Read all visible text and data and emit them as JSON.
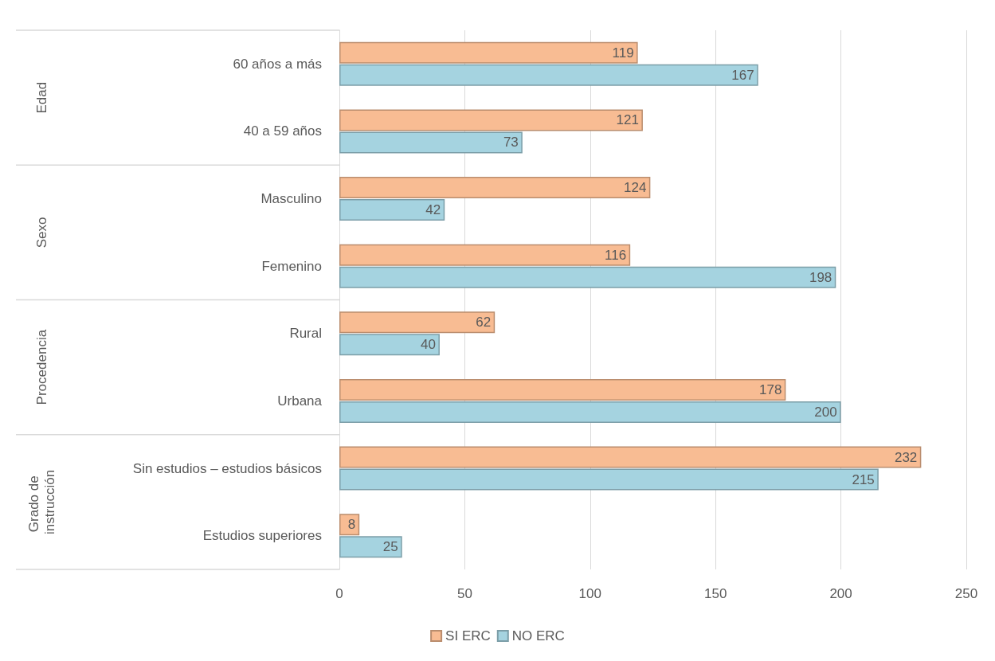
{
  "chart_data": {
    "type": "bar",
    "orientation": "horizontal",
    "categories": [
      "60 años a más",
      "40 a 59 años",
      "Masculino",
      "Femenino",
      "Rural",
      "Urbana",
      "Sin estudios – estudios básicos",
      "Estudios superiores"
    ],
    "series": [
      {
        "name": "SI ERC",
        "color": "#f8bc93",
        "values": [
          119,
          121,
          124,
          116,
          62,
          178,
          232,
          8
        ]
      },
      {
        "name": "NO ERC",
        "color": "#a5d3e0",
        "values": [
          167,
          73,
          42,
          198,
          40,
          200,
          215,
          25
        ]
      }
    ],
    "xlim": [
      0,
      250
    ],
    "xticks": [
      0,
      50,
      100,
      150,
      200,
      250
    ],
    "annotations": [
      "Edad",
      "Sexo",
      "Procedencia",
      "Grado de instrucción"
    ],
    "data_labels": true,
    "grid": "x",
    "legend": "bottom"
  }
}
